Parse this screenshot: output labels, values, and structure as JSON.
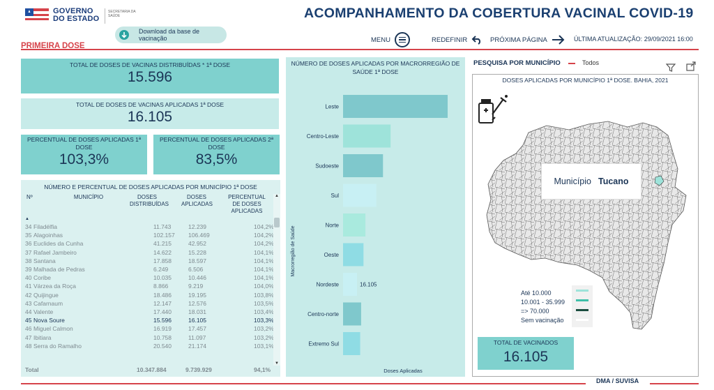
{
  "header": {
    "logo_line1": "GOVERNO",
    "logo_line2": "DO ESTADO",
    "logo_secretaria": "SECRETARIA DA SAÚDE",
    "download_label": "Download da base de vacinação",
    "title": "ACOMPANHAMENTO DA COBERTURA VACINAL COVID-19",
    "menu_label": "MENU",
    "redefinir_label": "REDEFINIR",
    "proxima_label": "PRÓXIMA PÁGINA",
    "update_label": "ÚLTIMA ATUALIZAÇÃO: 29/09/2021 16:00",
    "section": "PRIMEIRA DOSE"
  },
  "kpis": {
    "distribuidas_label": "TOTAL DE DOSES DE VACINAS DISTRIBUÍDAS * 1ª DOSE",
    "distribuidas_value": "15.596",
    "aplicadas_label": "TOTAL DE DOSES DE VACINAS APLICADAS 1ª DOSE",
    "aplicadas_value": "16.105",
    "perc1_label": "PERCENTUAL DE DOSES APLICADAS 1ª DOSE",
    "perc1_value": "103,3%",
    "perc2_label": "PERCENTUAL DE DOSES APLICADAS 2ª DOSE",
    "perc2_value": "83,5%"
  },
  "table": {
    "title": "NÚMERO E PERCENTUAL DE DOSES APLICADAS POR MUNICÍPIO 1ª DOSE",
    "columns": [
      "Nº",
      "MUNICÍPIO",
      "DOSES DISTRIBUÍDAS",
      "DOSES APLICADAS",
      "PERCENTUAL DE DOSES APLICADAS"
    ],
    "rows": [
      [
        "34",
        "Filadélfia",
        "11.743",
        "12.239",
        "104,2%"
      ],
      [
        "35",
        "Alagoinhas",
        "102.157",
        "106.469",
        "104,2%"
      ],
      [
        "36",
        "Euclides da Cunha",
        "41.215",
        "42.952",
        "104,2%"
      ],
      [
        "37",
        "Rafael Jambeiro",
        "14.622",
        "15.228",
        "104,1%"
      ],
      [
        "38",
        "Santana",
        "17.858",
        "18.597",
        "104,1%"
      ],
      [
        "39",
        "Malhada de Pedras",
        "6.249",
        "6.506",
        "104,1%"
      ],
      [
        "40",
        "Coribe",
        "10.035",
        "10.446",
        "104,1%"
      ],
      [
        "41",
        "Várzea da Roça",
        "8.866",
        "9.219",
        "104,0%"
      ],
      [
        "42",
        "Quijingue",
        "18.486",
        "19.195",
        "103,8%"
      ],
      [
        "43",
        "Cafarnaum",
        "12.147",
        "12.576",
        "103,5%"
      ],
      [
        "44",
        "Valente",
        "17.440",
        "18.031",
        "103,4%"
      ],
      [
        "45",
        "Nova Soure",
        "15.596",
        "16.105",
        "103,3%"
      ],
      [
        "46",
        "Miguel Calmon",
        "16.919",
        "17.457",
        "103,2%"
      ],
      [
        "47",
        "Ibitiara",
        "10.758",
        "11.097",
        "103,2%"
      ],
      [
        "48",
        "Serra do Ramalho",
        "20.540",
        "21.174",
        "103,1%"
      ]
    ],
    "selected_index": 11,
    "total_label": "Total",
    "total_distribuidas": "10.347.884",
    "total_aplicadas": "9.739.929",
    "total_percentual": "94,1%"
  },
  "chart_data": {
    "type": "bar",
    "title": "NÚMERO DE DOSES APLICADAS POR MACRORREGIÃO DE SAÚDE 1ª DOSE",
    "ylabel": "Macrorregião de Saúde",
    "xlabel": "Doses Aplicadas",
    "categories": [
      "Leste",
      "Centro-Leste",
      "Sudoeste",
      "Sul",
      "Norte",
      "Oeste",
      "Nordeste",
      "Centro-norte",
      "Extremo Sul"
    ],
    "values": [
      2200,
      1000,
      840,
      700,
      470,
      430,
      16.105,
      380,
      360
    ],
    "data_labels": [
      "",
      "",
      "",
      "",
      "",
      "",
      "16.105",
      "",
      ""
    ],
    "colors": [
      "#7fc8cc",
      "#9ee3da",
      "#7fc8cc",
      "#c8f0f4",
      "#a9eade",
      "#8fdce4",
      "#c8f0f4",
      "#7fc8cc",
      "#8fdce4"
    ]
  },
  "map": {
    "search_label": "PESQUISA POR MUNICÍPIO",
    "filter_value": "Todos",
    "title": "DOSES APLICADAS POR MUNICÍPIO 1ª DOSE. BAHIA, 2021",
    "tooltip_key": "Município",
    "tooltip_value": "Tucano",
    "legend": [
      "Até 10.000",
      "10.001 - 35.999",
      "=> 70.000",
      "Sem vacinação"
    ],
    "legend_colors": [
      "#9ee3da",
      "#3fbfa8",
      "#1a4d3f",
      "#ffffff"
    ],
    "total_label": "TOTAL DE VACINADOS",
    "total_value": "16.105"
  },
  "footer": {
    "label": "DMA / SUVISA"
  }
}
